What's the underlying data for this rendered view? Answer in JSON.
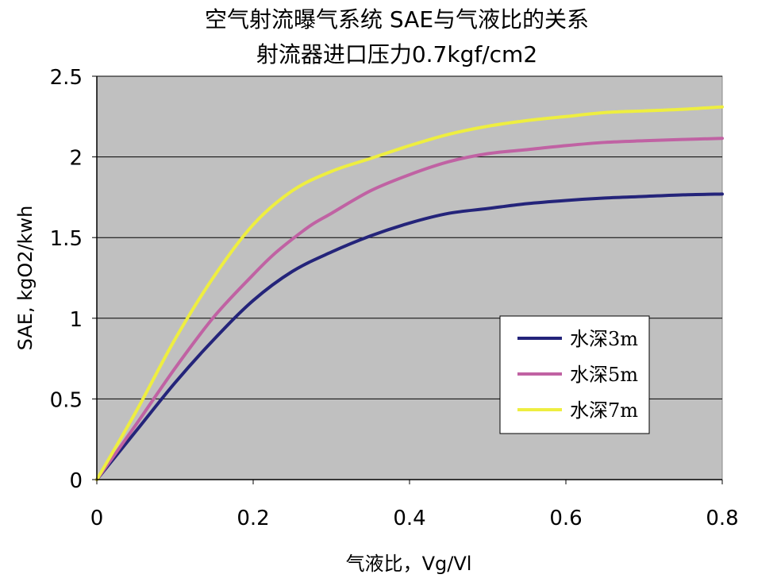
{
  "chart_data": {
    "type": "line",
    "title": "空气射流曝气系统 SAE与气液比的关系",
    "subtitle": "射流器进口压力0.7kgf/cm2",
    "xlabel": "气液比，Vg/Vl",
    "ylabel": "SAE, kgO2/kwh",
    "xlim": [
      0,
      0.8
    ],
    "ylim": [
      0,
      2.5
    ],
    "x_ticks": [
      "0",
      "0.2",
      "0.4",
      "0.6",
      "0.8"
    ],
    "y_ticks": [
      "0",
      "0.5",
      "1",
      "1.5",
      "2",
      "2.5"
    ],
    "grid": "horizontal",
    "legend_position": "bottom-right",
    "plot_background": "#c0c0c0",
    "series": [
      {
        "name": "水深3m",
        "color": "#24247a",
        "x": [
          0,
          0.05,
          0.1,
          0.15,
          0.2,
          0.25,
          0.3,
          0.35,
          0.4,
          0.45,
          0.5,
          0.55,
          0.6,
          0.65,
          0.7,
          0.75,
          0.8
        ],
        "y": [
          0,
          0.3,
          0.6,
          0.87,
          1.11,
          1.29,
          1.41,
          1.51,
          1.59,
          1.65,
          1.68,
          1.71,
          1.73,
          1.745,
          1.755,
          1.765,
          1.77
        ]
      },
      {
        "name": "水深5m",
        "color": "#c062a3",
        "x": [
          0,
          0.05,
          0.1,
          0.15,
          0.2,
          0.225,
          0.25,
          0.275,
          0.3,
          0.35,
          0.4,
          0.45,
          0.5,
          0.55,
          0.6,
          0.65,
          0.7,
          0.75,
          0.8
        ],
        "y": [
          0,
          0.34,
          0.69,
          1.01,
          1.27,
          1.39,
          1.49,
          1.58,
          1.65,
          1.79,
          1.89,
          1.97,
          2.02,
          2.045,
          2.07,
          2.09,
          2.1,
          2.108,
          2.115
        ]
      },
      {
        "name": "水深7m",
        "color": "#eeee40",
        "x": [
          0,
          0.05,
          0.1,
          0.15,
          0.2,
          0.25,
          0.3,
          0.35,
          0.4,
          0.45,
          0.5,
          0.55,
          0.6,
          0.65,
          0.7,
          0.75,
          0.8
        ],
        "y": [
          0,
          0.42,
          0.87,
          1.26,
          1.58,
          1.79,
          1.91,
          1.99,
          2.07,
          2.14,
          2.19,
          2.225,
          2.25,
          2.275,
          2.285,
          2.295,
          2.31
        ]
      }
    ]
  }
}
